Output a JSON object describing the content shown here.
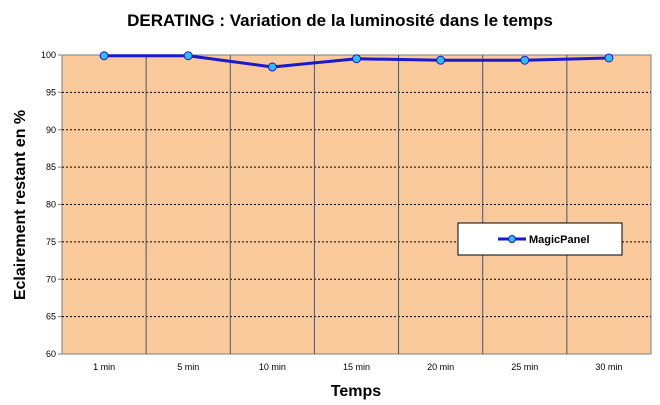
{
  "chart_data": {
    "type": "line",
    "title": "DERATING : Variation de la luminosité dans le temps",
    "xlabel": "Temps",
    "ylabel": "Eclairement restant en %",
    "categories": [
      "1 min",
      "5 min",
      "10 min",
      "15 min",
      "20 min",
      "25 min",
      "30 min"
    ],
    "series": [
      {
        "name": "MagicPanel",
        "values": [
          99.9,
          99.9,
          98.4,
          99.5,
          99.3,
          99.3,
          99.6
        ],
        "color": "#1a1acc",
        "marker_color": "#33bbee"
      }
    ],
    "ylim": [
      60,
      100
    ],
    "yticks": [
      60,
      65,
      70,
      75,
      80,
      85,
      90,
      95,
      100
    ],
    "grid": true,
    "legend_position": "right",
    "plot_background": "#f9c89b"
  }
}
